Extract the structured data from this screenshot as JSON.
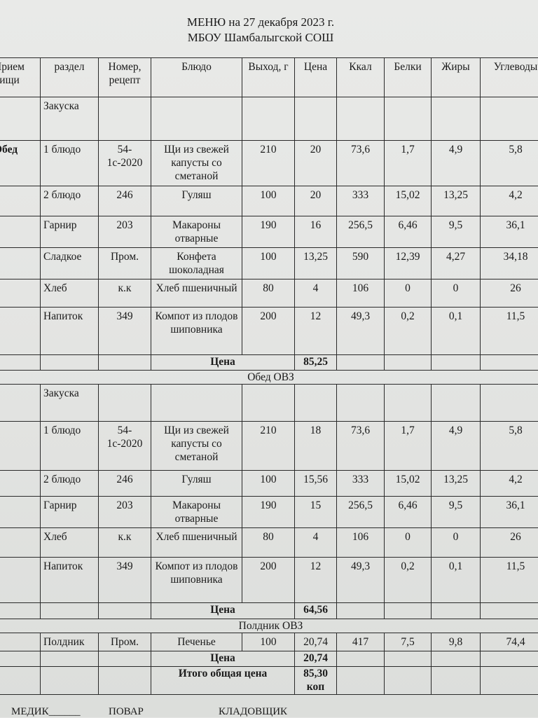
{
  "title": "МЕНЮ на 27 декабря 2023  г.",
  "subtitle": "МБОУ Шамбалыгской СОШ",
  "columns": [
    "Прием пищи",
    "раздел",
    "Номер, рецепт",
    "Блюдо",
    "Выход, г",
    "Цена",
    "Ккал",
    "Белки",
    "Жиры",
    "Углеводы"
  ],
  "rows": [
    {
      "type": "item",
      "cells": [
        "",
        "Закуска",
        "",
        "",
        "",
        "",
        "",
        "",
        "",
        ""
      ]
    },
    {
      "type": "item",
      "cells": [
        "Обед",
        "1 блюдо",
        "54-1с-2020",
        "Щи из свежей капусты со сметаной",
        "210",
        "20",
        "73,6",
        "1,7",
        "4,9",
        "5,8"
      ]
    },
    {
      "type": "item",
      "cells": [
        "",
        "2 блюдо",
        "246",
        "Гуляш",
        "100",
        "20",
        "333",
        "15,02",
        "13,25",
        "4,2"
      ]
    },
    {
      "type": "item",
      "cells": [
        "",
        "Гарнир",
        "203",
        "Макароны отварные",
        "190",
        "16",
        "256,5",
        "6,46",
        "9,5",
        "36,1"
      ]
    },
    {
      "type": "item",
      "cells": [
        "",
        "Сладкое",
        "Пром.",
        "Конфета шоколадная",
        "100",
        "13,25",
        "590",
        "12,39",
        "4,27",
        "34,18"
      ]
    },
    {
      "type": "item",
      "cells": [
        "",
        "Хлеб",
        "к.к",
        "Хлеб пшеничный",
        "80",
        "4",
        "106",
        "0",
        "0",
        "26"
      ]
    },
    {
      "type": "item",
      "cells": [
        "",
        "Напиток",
        "349",
        "Компот из плодов шиповника",
        "200",
        "12",
        "49,3",
        "0,2",
        "0,1",
        "11,5"
      ]
    },
    {
      "type": "total",
      "label": "Цена",
      "value": "85,25"
    },
    {
      "type": "section",
      "label": "Обед ОВЗ"
    },
    {
      "type": "item",
      "cells": [
        "",
        "Закуска",
        "",
        "",
        "",
        "",
        "",
        "",
        "",
        ""
      ]
    },
    {
      "type": "item",
      "cells": [
        "",
        "1 блюдо",
        "54-1с-2020",
        "Щи из свежей капусты со сметаной",
        "210",
        "18",
        "73,6",
        "1,7",
        "4,9",
        "5,8"
      ]
    },
    {
      "type": "item",
      "cells": [
        "",
        "2 блюдо",
        "246",
        "Гуляш",
        "100",
        "15,56",
        "333",
        "15,02",
        "13,25",
        "4,2"
      ]
    },
    {
      "type": "item",
      "cells": [
        "",
        "Гарнир",
        "203",
        "Макароны отварные",
        "190",
        "15",
        "256,5",
        "6,46",
        "9,5",
        "36,1"
      ]
    },
    {
      "type": "item",
      "cells": [
        "",
        "Хлеб",
        "к.к",
        "Хлеб пшеничный",
        "80",
        "4",
        "106",
        "0",
        "0",
        "26"
      ]
    },
    {
      "type": "item",
      "cells": [
        "",
        "Напиток",
        "349",
        "Компот из плодов шиповника",
        "200",
        "12",
        "49,3",
        "0,2",
        "0,1",
        "11,5"
      ]
    },
    {
      "type": "total",
      "label": "Цена",
      "value": "64,56"
    },
    {
      "type": "section",
      "label": "Полдник ОВЗ"
    },
    {
      "type": "item",
      "cells": [
        "",
        "Полдник",
        "Пром.",
        "Печенье",
        "100",
        "20,74",
        "417",
        "7,5",
        "9,8",
        "74,4"
      ]
    },
    {
      "type": "total",
      "label": "Цена",
      "value": "20,74"
    },
    {
      "type": "total",
      "label": "Итого общая цена",
      "value": "85,30 коп"
    }
  ],
  "signatures": [
    "МЕДИК______",
    "ПОВАР",
    "КЛАДОВЩИК"
  ]
}
